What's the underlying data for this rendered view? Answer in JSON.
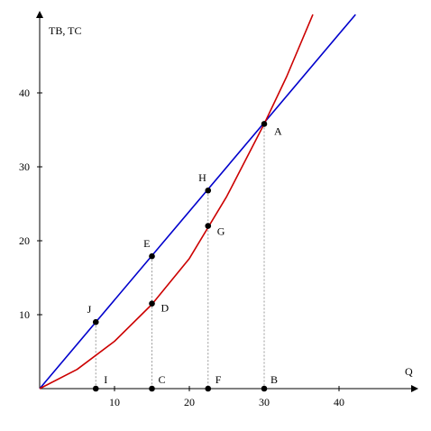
{
  "chart_data": {
    "type": "line",
    "title": "",
    "xlabel": "Q",
    "ylabel": "TB, TC",
    "xlim": [
      0,
      50
    ],
    "ylim": [
      0,
      50
    ],
    "x_ticks": [
      "10",
      "20",
      "30",
      "40"
    ],
    "y_ticks": [
      "10",
      "20",
      "30",
      "40"
    ],
    "grid": false,
    "legend": "none",
    "series": [
      {
        "color": "#0000cc",
        "x": [
          0,
          42.2
        ],
        "y": [
          0,
          50.6
        ]
      },
      {
        "color": "#cc0000",
        "x": [
          0,
          5,
          10,
          15,
          20,
          25,
          30,
          33,
          36.5
        ],
        "y": [
          0,
          2.6,
          6.4,
          11.4,
          17.6,
          26,
          35.8,
          42.2,
          50.6
        ]
      }
    ],
    "points": [
      {
        "label": "J",
        "x": 7.5,
        "y": 9,
        "guide": true
      },
      {
        "label": "E",
        "x": 15,
        "y": 17.9,
        "guide": true
      },
      {
        "label": "H",
        "x": 22.5,
        "y": 26.8,
        "guide": true
      },
      {
        "label": "A",
        "x": 30,
        "y": 35.8,
        "guide": true
      },
      {
        "label": "D",
        "x": 15,
        "y": 11.5,
        "guide": false
      },
      {
        "label": "G",
        "x": 22.5,
        "y": 22,
        "guide": false
      },
      {
        "label": "I",
        "x": 7.5,
        "y": 0,
        "guide": false
      },
      {
        "label": "C",
        "x": 15,
        "y": 0,
        "guide": false
      },
      {
        "label": "F",
        "x": 22.5,
        "y": 0,
        "guide": false
      },
      {
        "label": "B",
        "x": 30,
        "y": 0,
        "guide": false
      }
    ]
  }
}
